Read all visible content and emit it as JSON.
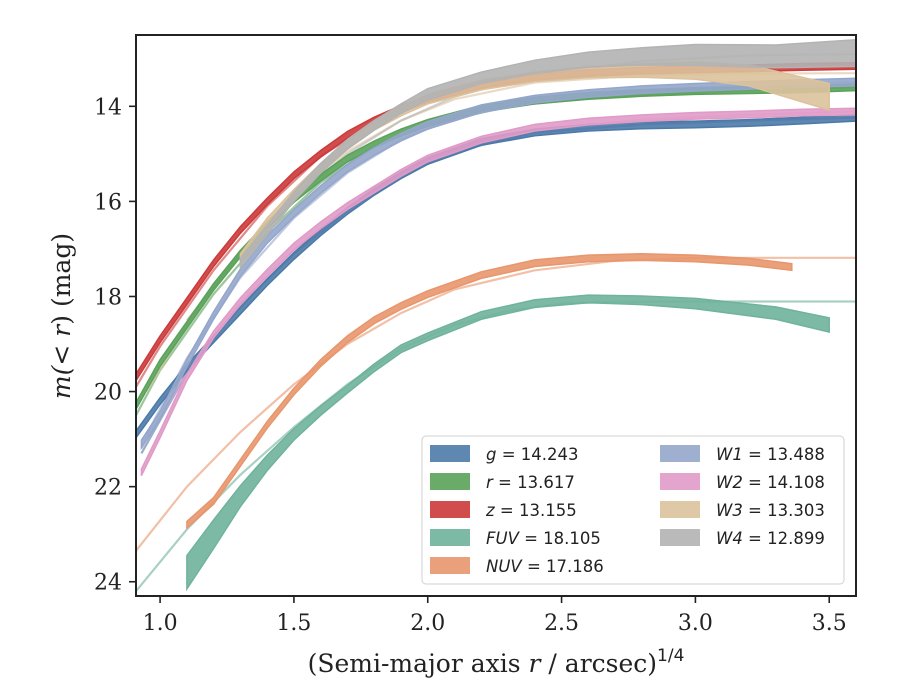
{
  "chart_data": {
    "type": "line",
    "title": "",
    "xlabel_main": "(Semi-major axis ",
    "xlabel_var": "r",
    "xlabel_tail": " / arcsec)",
    "xlabel_sup": "1/4",
    "ylabel_main": "m(",
    "ylabel_var": "< r",
    "ylabel_tail": ") (mag)",
    "xlim": [
      0.91,
      3.6
    ],
    "ylim": [
      24.3,
      12.5
    ],
    "y_inverted": true,
    "grid": false,
    "legend_position": "lower-right",
    "x_ticks": [
      "1.0",
      "1.5",
      "2.0",
      "2.5",
      "3.0",
      "3.5"
    ],
    "y_ticks": [
      "14",
      "16",
      "18",
      "20",
      "22",
      "24"
    ],
    "series": [
      {
        "name": "g",
        "legend_value": "= 14.243",
        "color": "#4c7aa8",
        "band": 0.07,
        "data_x": [
          0.91,
          1.0,
          1.1,
          1.2,
          1.3,
          1.4,
          1.5,
          1.6,
          1.7,
          1.8,
          1.9,
          2.0,
          2.2,
          2.4,
          2.6,
          2.8,
          3.0,
          3.2,
          3.4,
          3.6
        ],
        "data_y": [
          20.9,
          20.2,
          19.5,
          18.9,
          18.3,
          17.7,
          17.15,
          16.65,
          16.2,
          15.8,
          15.45,
          15.15,
          14.75,
          14.55,
          14.45,
          14.4,
          14.38,
          14.35,
          14.3,
          14.24
        ],
        "model_x": [
          0.93,
          1.1,
          1.3,
          1.5,
          1.7,
          1.9,
          2.1,
          2.4,
          2.8,
          3.2,
          3.6
        ],
        "model_y": [
          21.3,
          19.6,
          18.2,
          17.1,
          16.2,
          15.45,
          14.95,
          14.55,
          14.38,
          14.3,
          14.24
        ]
      },
      {
        "name": "r",
        "legend_value": "= 13.617",
        "color": "#5aa25a",
        "band": 0.07,
        "data_x": [
          0.91,
          1.0,
          1.1,
          1.2,
          1.3,
          1.4,
          1.5,
          1.6,
          1.7,
          1.8,
          1.9,
          2.0,
          2.2,
          2.4,
          2.6,
          2.8,
          3.0,
          3.2,
          3.4,
          3.6
        ],
        "data_y": [
          20.3,
          19.4,
          18.6,
          17.8,
          17.1,
          16.5,
          15.95,
          15.5,
          15.1,
          14.8,
          14.55,
          14.35,
          14.05,
          13.88,
          13.78,
          13.72,
          13.68,
          13.66,
          13.64,
          13.6
        ],
        "model_x": [
          0.91,
          1.0,
          1.2,
          1.4,
          1.6,
          1.8,
          2.0,
          2.3,
          2.7,
          3.1,
          3.6
        ],
        "model_y": [
          20.5,
          19.55,
          17.95,
          16.65,
          15.6,
          14.85,
          14.4,
          14.0,
          13.78,
          13.68,
          13.6
        ]
      },
      {
        "name": "z",
        "legend_value": "= 13.155",
        "color": "#cc3a3a",
        "band": 0.07,
        "data_x": [
          0.91,
          1.0,
          1.1,
          1.2,
          1.3,
          1.4,
          1.5,
          1.6,
          1.7,
          1.8,
          1.9,
          2.0,
          2.2,
          2.4,
          2.6,
          2.8,
          3.0,
          3.2,
          3.4,
          3.6
        ],
        "data_y": [
          19.7,
          18.9,
          18.1,
          17.3,
          16.6,
          16.0,
          15.45,
          15.0,
          14.6,
          14.3,
          14.05,
          13.85,
          13.55,
          13.4,
          13.3,
          13.25,
          13.22,
          13.2,
          13.17,
          13.15
        ],
        "model_x": [
          0.91,
          1.0,
          1.2,
          1.4,
          1.6,
          1.8,
          2.0,
          2.3,
          2.7,
          3.1,
          3.6
        ],
        "model_y": [
          19.9,
          19.05,
          17.45,
          16.1,
          15.05,
          14.35,
          13.9,
          13.5,
          13.3,
          13.2,
          13.15
        ]
      },
      {
        "name": "FUV",
        "legend_value": "= 18.105",
        "color": "#6fb39b",
        "band_data": [
          0.35,
          0.3,
          0.22,
          0.16,
          0.12,
          0.1,
          0.08,
          0.08,
          0.08,
          0.08,
          0.08,
          0.08,
          0.08,
          0.09,
          0.11,
          0.13,
          0.15
        ],
        "data_x": [
          1.1,
          1.2,
          1.3,
          1.4,
          1.5,
          1.6,
          1.7,
          1.8,
          1.9,
          2.0,
          2.2,
          2.4,
          2.6,
          2.8,
          3.0,
          3.3,
          3.5
        ],
        "data_y": [
          23.8,
          23.0,
          22.2,
          21.5,
          20.9,
          20.4,
          19.95,
          19.5,
          19.1,
          18.85,
          18.4,
          18.15,
          18.05,
          18.08,
          18.15,
          18.35,
          18.6
        ],
        "model_x": [
          0.91,
          1.1,
          1.3,
          1.5,
          1.7,
          1.9,
          2.1,
          2.3,
          2.5,
          2.7,
          3.0,
          3.3,
          3.6
        ],
        "model_y": [
          24.2,
          22.9,
          21.75,
          20.75,
          19.85,
          19.1,
          18.6,
          18.3,
          18.15,
          18.11,
          18.105,
          18.105,
          18.105
        ]
      },
      {
        "name": "NUV",
        "legend_value": "= 17.186",
        "color": "#e8966c",
        "band": 0.07,
        "data_x": [
          1.1,
          1.2,
          1.3,
          1.4,
          1.5,
          1.6,
          1.7,
          1.8,
          1.9,
          2.0,
          2.2,
          2.4,
          2.6,
          2.8,
          3.0,
          3.2,
          3.36
        ],
        "data_y": [
          22.8,
          22.3,
          21.5,
          20.7,
          20.0,
          19.4,
          18.9,
          18.5,
          18.2,
          17.95,
          17.55,
          17.3,
          17.2,
          17.17,
          17.2,
          17.27,
          17.38
        ],
        "model_x": [
          0.91,
          1.1,
          1.3,
          1.5,
          1.7,
          1.9,
          2.1,
          2.4,
          2.7,
          3.0,
          3.3,
          3.6
        ],
        "model_y": [
          23.35,
          22.0,
          20.85,
          19.85,
          19.0,
          18.35,
          17.85,
          17.45,
          17.25,
          17.19,
          17.186,
          17.186
        ]
      },
      {
        "name": "W1",
        "legend_value": "= 13.488",
        "color": "#94a6cb",
        "band": 0.08,
        "data_x": [
          0.93,
          1.0,
          1.1,
          1.2,
          1.3,
          1.4,
          1.5,
          1.6,
          1.7,
          1.8,
          1.9,
          2.0,
          2.2,
          2.4,
          2.6,
          2.8,
          3.0,
          3.2,
          3.4,
          3.6
        ],
        "data_y": [
          21.1,
          20.5,
          19.4,
          18.4,
          17.5,
          16.8,
          16.25,
          15.75,
          15.3,
          14.95,
          14.65,
          14.4,
          14.05,
          13.85,
          13.73,
          13.65,
          13.6,
          13.56,
          13.52,
          13.49
        ],
        "model_x": [
          0.95,
          1.1,
          1.3,
          1.5,
          1.7,
          1.9,
          2.1,
          2.4,
          2.8,
          3.2,
          3.6
        ],
        "model_y": [
          20.9,
          19.3,
          17.6,
          16.35,
          15.4,
          14.7,
          14.25,
          13.9,
          13.67,
          13.56,
          13.49
        ]
      },
      {
        "name": "W2",
        "legend_value": "= 14.108",
        "color": "#e09bc8",
        "band": 0.07,
        "data_x": [
          0.93,
          1.0,
          1.1,
          1.2,
          1.3,
          1.4,
          1.5,
          1.6,
          1.7,
          1.8,
          1.9,
          2.0,
          2.2,
          2.4,
          2.6,
          2.8,
          3.0,
          3.2,
          3.4,
          3.6
        ],
        "data_y": [
          21.7,
          20.9,
          19.7,
          18.8,
          18.1,
          17.5,
          16.95,
          16.5,
          16.1,
          15.75,
          15.4,
          15.1,
          14.7,
          14.45,
          14.32,
          14.25,
          14.2,
          14.17,
          14.13,
          14.11
        ],
        "model_x": [
          0.93,
          1.1,
          1.3,
          1.5,
          1.7,
          1.9,
          2.1,
          2.4,
          2.8,
          3.2,
          3.6
        ],
        "model_y": [
          21.2,
          19.6,
          18.15,
          17.05,
          16.15,
          15.4,
          14.9,
          14.5,
          14.28,
          14.18,
          14.11
        ]
      },
      {
        "name": "W3",
        "legend_value": "= 13.303",
        "color": "#dcc29c",
        "band_data": [
          0.1,
          0.1,
          0.1,
          0.1,
          0.1,
          0.1,
          0.1,
          0.1,
          0.1,
          0.1,
          0.12,
          0.14,
          0.18,
          0.22,
          0.28
        ],
        "data_x": [
          1.3,
          1.4,
          1.5,
          1.6,
          1.7,
          1.8,
          1.9,
          2.0,
          2.2,
          2.4,
          2.6,
          2.8,
          3.0,
          3.2,
          3.5
        ],
        "data_y": [
          17.2,
          16.45,
          15.85,
          15.3,
          14.8,
          14.4,
          14.1,
          13.85,
          13.55,
          13.38,
          13.28,
          13.25,
          13.25,
          13.35,
          13.8
        ],
        "model_x": [
          0.95,
          1.1,
          1.3,
          1.5,
          1.7,
          1.9,
          2.1,
          2.4,
          2.8,
          3.2,
          3.6
        ],
        "model_y": [
          20.0,
          18.6,
          17.05,
          15.85,
          14.95,
          14.3,
          13.85,
          13.5,
          13.35,
          13.31,
          13.303
        ]
      },
      {
        "name": "W4",
        "legend_value": "= 12.899",
        "color": "#b3b3b3",
        "band_data": [
          0.1,
          0.1,
          0.1,
          0.1,
          0.1,
          0.1,
          0.1,
          0.12,
          0.12,
          0.14,
          0.16,
          0.18,
          0.22,
          0.24,
          0.28
        ],
        "data_x": [
          1.3,
          1.4,
          1.5,
          1.6,
          1.7,
          1.8,
          1.9,
          2.0,
          2.2,
          2.4,
          2.6,
          2.8,
          3.0,
          3.3,
          3.6
        ],
        "data_y": [
          17.3,
          16.6,
          15.9,
          15.3,
          14.8,
          14.4,
          14.05,
          13.75,
          13.4,
          13.17,
          13.02,
          12.95,
          12.92,
          12.95,
          12.88
        ],
        "model_x": [
          1.1,
          1.3,
          1.5,
          1.7,
          1.9,
          2.1,
          2.4,
          2.8,
          3.2,
          3.6
        ],
        "model_y": [
          18.5,
          17.1,
          15.95,
          15.0,
          14.3,
          13.8,
          13.35,
          13.05,
          12.93,
          12.899
        ]
      }
    ]
  }
}
